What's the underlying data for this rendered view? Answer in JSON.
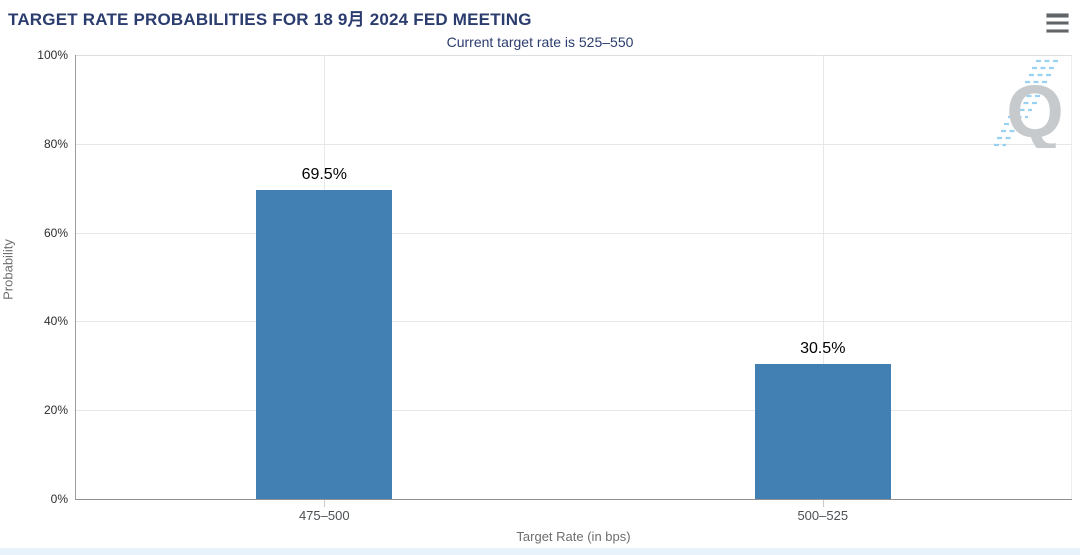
{
  "header": {
    "title": "TARGET RATE PROBABILITIES FOR 18 9月 2024 FED MEETING",
    "subtitle": "Current target rate is 525–550"
  },
  "colors": {
    "bar": "#4280b4",
    "title_navy": "#2b3c6f",
    "gridline": "#e7e7e7",
    "watermark_q": "#c7cacd",
    "watermark_dash": "#8fcdf2"
  },
  "chart_data": {
    "type": "bar",
    "title": "TARGET RATE PROBABILITIES FOR 18 9月 2024 FED MEETING",
    "subtitle": "Current target rate is 525–550",
    "categories": [
      "475–500",
      "500–525"
    ],
    "values": [
      69.5,
      30.5
    ],
    "value_labels": [
      "69.5%",
      "30.5%"
    ],
    "xlabel": "Target Rate (in bps)",
    "ylabel": "Probability",
    "ylim": [
      0,
      100
    ],
    "yticks": [
      0,
      20,
      40,
      60,
      80,
      100
    ],
    "ytick_labels": [
      "0%",
      "20%",
      "40%",
      "60%",
      "80%",
      "100%"
    ],
    "grid": true,
    "legend": "none",
    "bar_color": "#4280b4"
  }
}
